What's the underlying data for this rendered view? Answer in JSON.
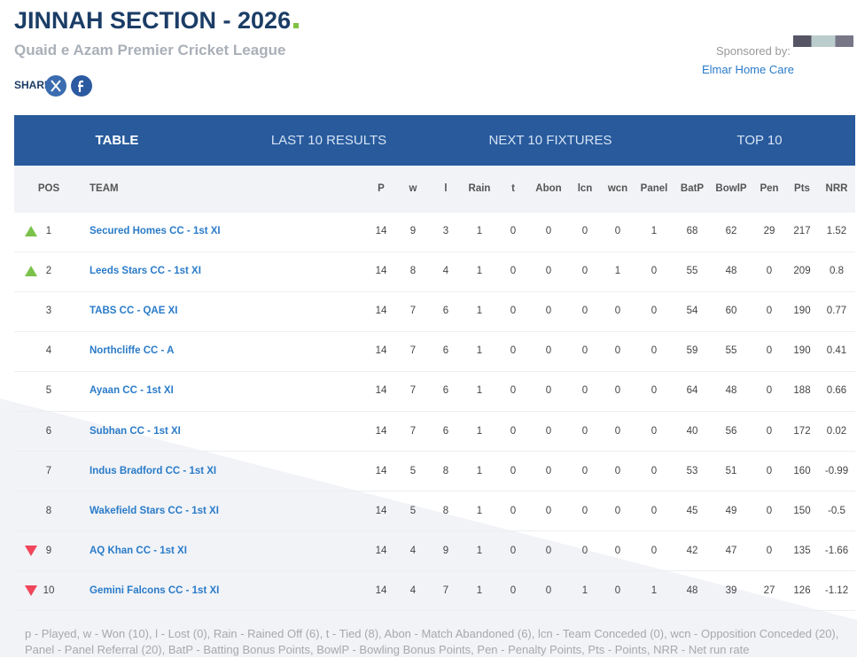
{
  "header": {
    "title": "JINNAH SECTION - 2026",
    "subtitle": "Quaid e Azam Premier Cricket League",
    "share": "SHARE",
    "sponsor_label": "Sponsored by:",
    "sponsor_name": "Elmar Home Care"
  },
  "tabs": [
    "TABLE",
    "LAST 10 RESULTS",
    "NEXT 10 FIXTURES",
    "TOP 10"
  ],
  "table": {
    "columns": [
      "POS",
      "TEAM",
      "P",
      "w",
      "l",
      "Rain",
      "t",
      "Abon",
      "lcn",
      "wcn",
      "Panel",
      "BatP",
      "BowlP",
      "Pen",
      "Pts",
      "NRR"
    ],
    "movement": [
      "up",
      "up",
      "none",
      "none",
      "none",
      "none",
      "none",
      "none",
      "down",
      "down"
    ],
    "rows": [
      [
        1,
        "Secured Homes CC - 1st XI",
        14,
        9,
        3,
        1,
        0,
        0,
        0,
        0,
        1,
        68,
        62,
        29,
        217,
        1.52
      ],
      [
        2,
        "Leeds Stars CC - 1st XI",
        14,
        8,
        4,
        1,
        0,
        0,
        0,
        1,
        0,
        55,
        48,
        0,
        209,
        0.8
      ],
      [
        3,
        "TABS CC - QAE XI",
        14,
        7,
        6,
        1,
        0,
        0,
        0,
        0,
        0,
        54,
        60,
        0,
        190,
        0.77
      ],
      [
        4,
        "Northcliffe CC - A",
        14,
        7,
        6,
        1,
        0,
        0,
        0,
        0,
        0,
        59,
        55,
        0,
        190,
        0.41
      ],
      [
        5,
        "Ayaan CC - 1st XI",
        14,
        7,
        6,
        1,
        0,
        0,
        0,
        0,
        0,
        64,
        48,
        0,
        188,
        0.66
      ],
      [
        6,
        "Subhan CC - 1st XI",
        14,
        7,
        6,
        1,
        0,
        0,
        0,
        0,
        0,
        40,
        56,
        0,
        172,
        0.02
      ],
      [
        7,
        "Indus Bradford CC - 1st XI",
        14,
        5,
        8,
        1,
        0,
        0,
        0,
        0,
        0,
        53,
        51,
        0,
        160,
        -0.99
      ],
      [
        8,
        "Wakefield Stars CC - 1st XI",
        14,
        5,
        8,
        1,
        0,
        0,
        0,
        0,
        0,
        45,
        49,
        0,
        150,
        -0.5
      ],
      [
        9,
        "AQ Khan CC - 1st XI",
        14,
        4,
        9,
        1,
        0,
        0,
        0,
        0,
        0,
        42,
        47,
        0,
        135,
        -1.66
      ],
      [
        10,
        "Gemini Falcons CC - 1st XI",
        14,
        4,
        7,
        1,
        0,
        0,
        1,
        0,
        1,
        48,
        39,
        27,
        126,
        -1.12
      ]
    ]
  },
  "footnote": "p - Played, w - Won (10), l - Lost (0), Rain - Rained Off (6), t - Tied (8), Abon - Match Abandoned (6), lcn - Team Conceded (0), wcn - Opposition Conceded (20), Panel - Panel Referral (20), BatP - Batting Bonus Points, BowlP - Bowling Bonus Points, Pen - Penalty Points, Pts - Points, NRR - Net run rate"
}
